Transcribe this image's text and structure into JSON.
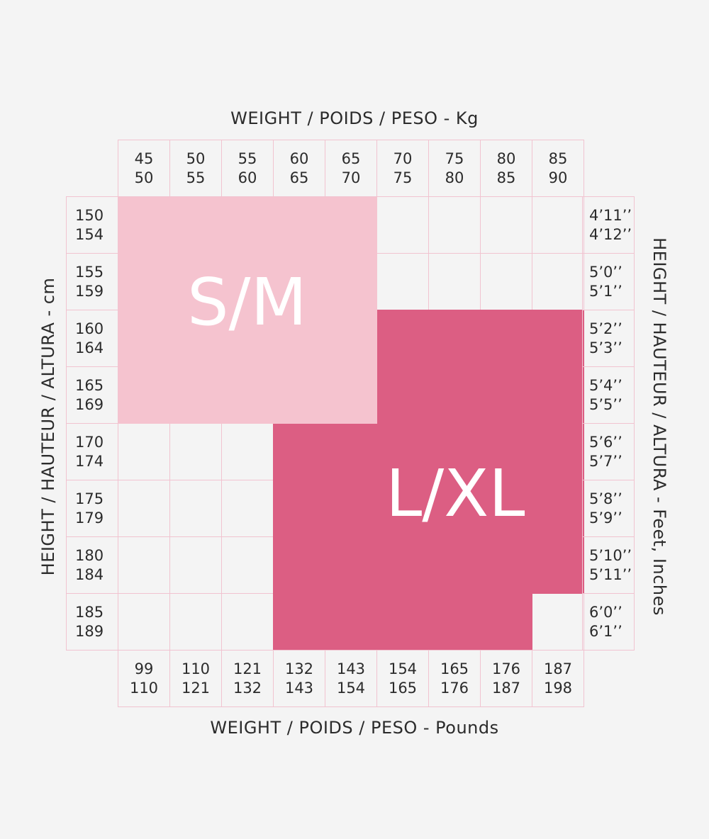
{
  "titles": {
    "top": "WEIGHT / POIDS / PESO - Kg",
    "bottom": "WEIGHT / POIDS / PESO - Pounds",
    "left": "HEIGHT / HAUTEUR / ALTURA - cm",
    "right": "HEIGHT / HAUTEUR / ALTURA - Feet, Inches"
  },
  "colors": {
    "sm": "#f5c3cf",
    "lxl": "#dc5e83",
    "grid": "#f1c3d0",
    "background": "#f4f4f4"
  },
  "chart_data": {
    "type": "table",
    "weight_kg": [
      [
        "45",
        "50"
      ],
      [
        "50",
        "55"
      ],
      [
        "55",
        "60"
      ],
      [
        "60",
        "65"
      ],
      [
        "65",
        "70"
      ],
      [
        "70",
        "75"
      ],
      [
        "75",
        "80"
      ],
      [
        "80",
        "85"
      ],
      [
        "85",
        "90"
      ]
    ],
    "weight_lbs": [
      [
        "99",
        "110"
      ],
      [
        "110",
        "121"
      ],
      [
        "121",
        "132"
      ],
      [
        "132",
        "143"
      ],
      [
        "143",
        "154"
      ],
      [
        "154",
        "165"
      ],
      [
        "165",
        "176"
      ],
      [
        "176",
        "187"
      ],
      [
        "187",
        "198"
      ]
    ],
    "height_cm": [
      [
        "150",
        "154"
      ],
      [
        "155",
        "159"
      ],
      [
        "160",
        "164"
      ],
      [
        "165",
        "169"
      ],
      [
        "170",
        "174"
      ],
      [
        "175",
        "179"
      ],
      [
        "180",
        "184"
      ],
      [
        "185",
        "189"
      ]
    ],
    "height_ft": [
      [
        "4’11’’",
        "4’12’’"
      ],
      [
        "5’0’’",
        "5’1’’"
      ],
      [
        "5’2’’",
        "5’3’’"
      ],
      [
        "5’4’’",
        "5’5’’"
      ],
      [
        "5’6’’",
        "5’7’’"
      ],
      [
        "5’8’’",
        "5’9’’"
      ],
      [
        "5’10’’",
        "5’11’’"
      ],
      [
        "6’0’’",
        "6’1’’"
      ]
    ],
    "sizes": [
      {
        "label": "S/M",
        "cells": "weight columns 1–5 (45–70 kg) × height rows 1–4 (150–169 cm)"
      },
      {
        "label": "L/XL",
        "cells": "weight columns 6–9 (70–90 kg) × height rows 3–7 (160–184 cm); weight columns 4–8 (60–85 kg) × height rows 5–8 (170–189 cm)"
      }
    ]
  }
}
